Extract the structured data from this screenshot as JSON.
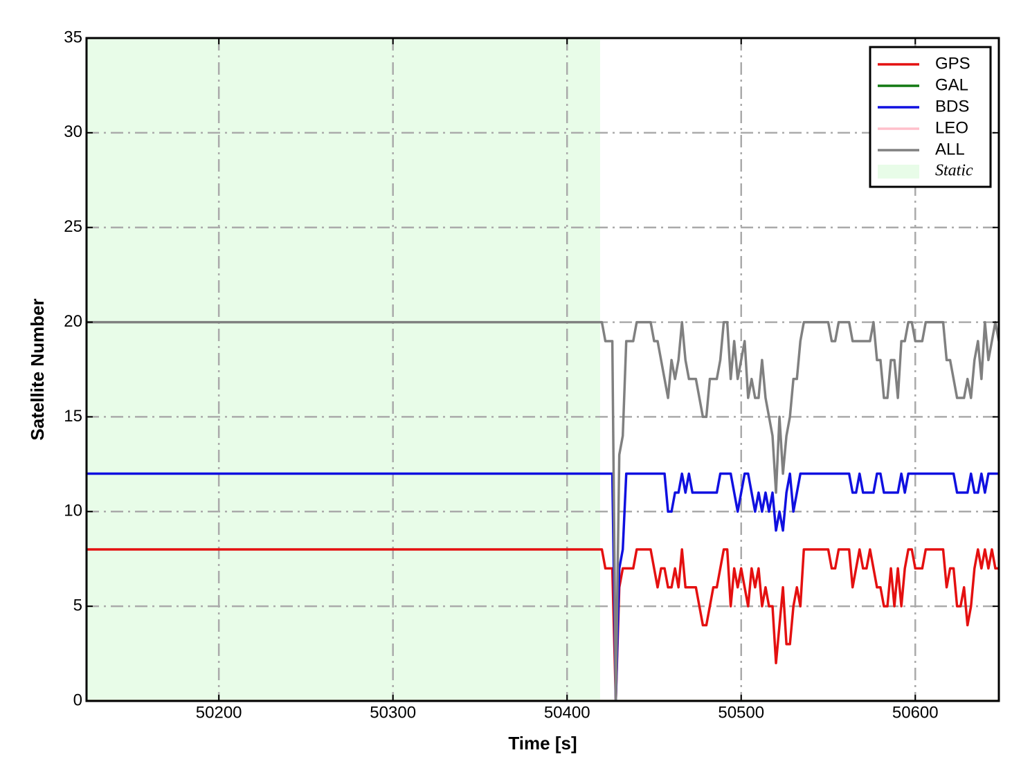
{
  "chart_data": {
    "type": "line",
    "xlabel": "Time [s]",
    "ylabel": "Satellite Number",
    "xlim": [
      50124,
      50648
    ],
    "xticks": [
      50200,
      50300,
      50400,
      50500,
      50600
    ],
    "ylim": [
      0,
      35
    ],
    "yticks": [
      0,
      5,
      10,
      15,
      20,
      25,
      30,
      35
    ],
    "grid": true,
    "legend": "upper right",
    "regions": [
      {
        "label": "Static",
        "xlim": [
          50124,
          50419
        ],
        "color": "#e8fce8"
      }
    ],
    "x": [
      50124,
      50420,
      50422,
      50424,
      50426,
      50428,
      50430,
      50432,
      50434,
      50436,
      50438,
      50440,
      50442,
      50444,
      50446,
      50448,
      50450,
      50452,
      50454,
      50456,
      50458,
      50460,
      50462,
      50464,
      50466,
      50468,
      50470,
      50472,
      50474,
      50476,
      50478,
      50480,
      50482,
      50484,
      50486,
      50488,
      50490,
      50492,
      50494,
      50496,
      50498,
      50500,
      50502,
      50504,
      50506,
      50508,
      50510,
      50512,
      50514,
      50516,
      50518,
      50520,
      50522,
      50524,
      50526,
      50528,
      50530,
      50532,
      50534,
      50536,
      50538,
      50540,
      50542,
      50544,
      50546,
      50548,
      50550,
      50552,
      50554,
      50556,
      50558,
      50560,
      50562,
      50564,
      50566,
      50568,
      50570,
      50572,
      50574,
      50576,
      50578,
      50580,
      50582,
      50584,
      50586,
      50588,
      50590,
      50592,
      50594,
      50596,
      50598,
      50600,
      50602,
      50604,
      50606,
      50608,
      50610,
      50612,
      50614,
      50616,
      50618,
      50620,
      50622,
      50624,
      50626,
      50628,
      50630,
      50632,
      50634,
      50636,
      50638,
      50640,
      50642,
      50644,
      50646,
      50648
    ],
    "series": [
      {
        "name": "GPS",
        "color": "#e41010",
        "values": [
          8,
          8,
          7,
          7,
          7,
          0,
          6,
          7,
          7,
          7,
          7,
          8,
          8,
          8,
          8,
          8,
          7,
          6,
          7,
          7,
          6,
          6,
          7,
          6,
          8,
          6,
          6,
          6,
          6,
          5,
          4,
          4,
          5,
          6,
          6,
          7,
          8,
          8,
          5,
          7,
          6,
          7,
          6,
          5,
          7,
          6,
          7,
          5,
          6,
          5,
          5,
          2,
          4,
          6,
          3,
          3,
          5,
          6,
          5,
          8,
          8,
          8,
          8,
          8,
          8,
          8,
          8,
          7,
          7,
          8,
          8,
          8,
          8,
          6,
          7,
          8,
          7,
          7,
          8,
          7,
          6,
          6,
          5,
          5,
          7,
          5,
          7,
          5,
          7,
          8,
          8,
          7,
          7,
          7,
          8,
          8,
          8,
          8,
          8,
          8,
          6,
          7,
          7,
          5,
          5,
          6,
          4,
          5,
          7,
          8,
          7,
          8,
          7,
          8,
          7,
          7
        ]
      },
      {
        "name": "GAL",
        "color": "#127812",
        "values": [
          0,
          0,
          0,
          0,
          0,
          0,
          0,
          0,
          0,
          0,
          0,
          0,
          0,
          0,
          0,
          0,
          0,
          0,
          0,
          0,
          0,
          0,
          0,
          0,
          0,
          0,
          0,
          0,
          0,
          0,
          0,
          0,
          0,
          0,
          0,
          0,
          0,
          0,
          0,
          0,
          0,
          0,
          0,
          0,
          0,
          0,
          0,
          0,
          0,
          0,
          0,
          0,
          0,
          0,
          0,
          0,
          0,
          0,
          0,
          0,
          0,
          0,
          0,
          0,
          0,
          0,
          0,
          0,
          0,
          0,
          0,
          0,
          0,
          0,
          0,
          0,
          0,
          0,
          0,
          0,
          0,
          0,
          0,
          0,
          0,
          0,
          0,
          0,
          0,
          0,
          0,
          0,
          0,
          0,
          0,
          0,
          0,
          0,
          0,
          0,
          0,
          0,
          0,
          0,
          0,
          0,
          0,
          0,
          0,
          0,
          0,
          0,
          0,
          0,
          0,
          0
        ]
      },
      {
        "name": "BDS",
        "color": "#1010e0",
        "values": [
          12,
          12,
          12,
          12,
          12,
          0,
          7,
          8,
          12,
          12,
          12,
          12,
          12,
          12,
          12,
          12,
          12,
          12,
          12,
          12,
          10,
          10,
          11,
          11,
          12,
          11,
          12,
          11,
          11,
          11,
          11,
          11,
          11,
          11,
          11,
          12,
          12,
          12,
          12,
          11,
          10,
          11,
          12,
          12,
          11,
          10,
          11,
          10,
          11,
          10,
          11,
          9,
          10,
          9,
          11,
          12,
          10,
          11,
          12,
          12,
          12,
          12,
          12,
          12,
          12,
          12,
          12,
          12,
          12,
          12,
          12,
          12,
          12,
          11,
          11,
          12,
          11,
          11,
          11,
          11,
          12,
          12,
          11,
          11,
          11,
          11,
          11,
          12,
          11,
          12,
          12,
          12,
          12,
          12,
          12,
          12,
          12,
          12,
          12,
          12,
          12,
          12,
          12,
          11,
          11,
          11,
          11,
          12,
          11,
          11,
          12,
          11,
          12,
          12,
          12,
          12
        ]
      },
      {
        "name": "LEO",
        "color": "#ffc0cb",
        "values": [
          0,
          0,
          0,
          0,
          0,
          0,
          0,
          0,
          0,
          0,
          0,
          0,
          0,
          0,
          0,
          0,
          0,
          0,
          0,
          0,
          0,
          0,
          0,
          0,
          0,
          0,
          0,
          0,
          0,
          0,
          0,
          0,
          0,
          0,
          0,
          0,
          0,
          0,
          0,
          0,
          0,
          0,
          0,
          0,
          0,
          0,
          0,
          0,
          0,
          0,
          0,
          0,
          0,
          0,
          0,
          0,
          0,
          0,
          0,
          0,
          0,
          0,
          0,
          0,
          0,
          0,
          0,
          0,
          0,
          0,
          0,
          0,
          0,
          0,
          0,
          0,
          0,
          0,
          0,
          0,
          0,
          0,
          0,
          0,
          0,
          0,
          0,
          0,
          0,
          0,
          0,
          0,
          0,
          0,
          0,
          0,
          0,
          0,
          0,
          0,
          0,
          0,
          0,
          0,
          0,
          0,
          0,
          0,
          0,
          0,
          0,
          0,
          0,
          0,
          0,
          0
        ]
      },
      {
        "name": "ALL",
        "color": "#808080",
        "values": [
          20,
          20,
          19,
          19,
          19,
          0,
          13,
          14,
          19,
          19,
          19,
          20,
          20,
          20,
          20,
          20,
          19,
          19,
          18,
          17,
          16,
          18,
          17,
          18,
          20,
          18,
          17,
          17,
          17,
          16,
          15,
          15,
          17,
          17,
          17,
          18,
          20,
          20,
          17,
          19,
          17,
          18,
          19,
          16,
          17,
          16,
          16,
          18,
          16,
          15,
          14,
          11,
          15,
          12,
          14,
          15,
          17,
          17,
          19,
          20,
          20,
          20,
          20,
          20,
          20,
          20,
          20,
          19,
          19,
          20,
          20,
          20,
          20,
          19,
          19,
          19,
          19,
          19,
          19,
          20,
          18,
          18,
          16,
          16,
          18,
          18,
          16,
          19,
          19,
          20,
          20,
          19,
          19,
          19,
          20,
          20,
          20,
          20,
          20,
          20,
          18,
          18,
          17,
          16,
          16,
          16,
          17,
          16,
          18,
          19,
          17,
          20,
          18,
          19,
          20,
          19
        ]
      }
    ]
  }
}
